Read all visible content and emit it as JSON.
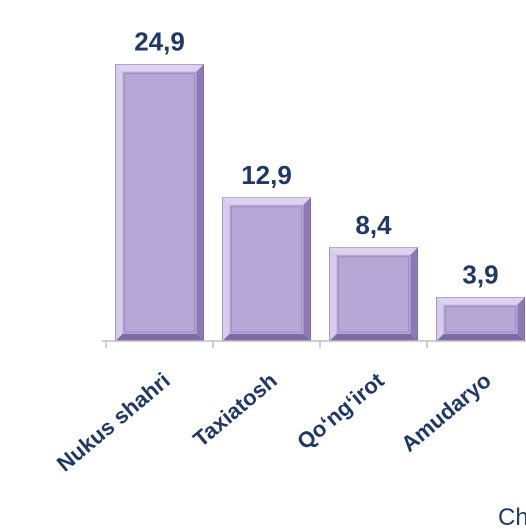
{
  "chart_data": {
    "type": "bar",
    "categories": [
      "Nukus shahri",
      "Taxiatosh",
      "Qo‘ng‘irot",
      "Amudaryo"
    ],
    "values": [
      24.9,
      12.9,
      8.4,
      3.9
    ],
    "value_labels": [
      "24,9",
      "12,9",
      "8,4",
      "3,9"
    ],
    "title": "",
    "xlabel": "",
    "ylabel": "",
    "ylim": [
      0,
      26
    ],
    "grid": false,
    "legend": "none",
    "colors": {
      "bar_fill": "#b7a7d6",
      "bar_light": "#ddd3ef",
      "bar_dark": "#7f6aa9",
      "label": "#1f3864",
      "axis": "#bfbfbf"
    }
  },
  "corner_text": "Ch"
}
